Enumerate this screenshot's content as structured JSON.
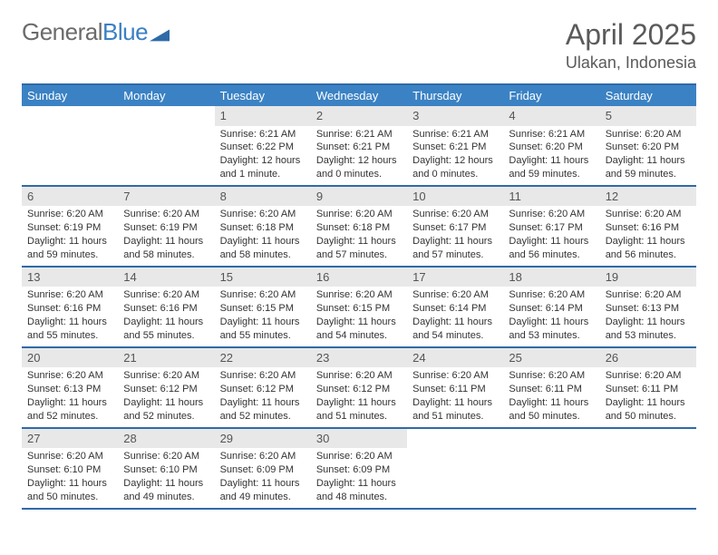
{
  "brand": {
    "part1": "General",
    "part2": "Blue"
  },
  "title": {
    "month": "April 2025",
    "location": "Ulakan, Indonesia"
  },
  "colors": {
    "header_bar": "#3b82c4",
    "week_border": "#2f6aa8",
    "daynum_bg": "#e8e8e8",
    "text": "#333333",
    "logo_gray": "#6b6b6b",
    "logo_blue": "#3b7fc4"
  },
  "days_of_week": [
    "Sunday",
    "Monday",
    "Tuesday",
    "Wednesday",
    "Thursday",
    "Friday",
    "Saturday"
  ],
  "weeks": [
    [
      {
        "n": "",
        "sr": "",
        "ss": "",
        "dl": ""
      },
      {
        "n": "",
        "sr": "",
        "ss": "",
        "dl": ""
      },
      {
        "n": "1",
        "sr": "Sunrise: 6:21 AM",
        "ss": "Sunset: 6:22 PM",
        "dl": "Daylight: 12 hours and 1 minute."
      },
      {
        "n": "2",
        "sr": "Sunrise: 6:21 AM",
        "ss": "Sunset: 6:21 PM",
        "dl": "Daylight: 12 hours and 0 minutes."
      },
      {
        "n": "3",
        "sr": "Sunrise: 6:21 AM",
        "ss": "Sunset: 6:21 PM",
        "dl": "Daylight: 12 hours and 0 minutes."
      },
      {
        "n": "4",
        "sr": "Sunrise: 6:21 AM",
        "ss": "Sunset: 6:20 PM",
        "dl": "Daylight: 11 hours and 59 minutes."
      },
      {
        "n": "5",
        "sr": "Sunrise: 6:20 AM",
        "ss": "Sunset: 6:20 PM",
        "dl": "Daylight: 11 hours and 59 minutes."
      }
    ],
    [
      {
        "n": "6",
        "sr": "Sunrise: 6:20 AM",
        "ss": "Sunset: 6:19 PM",
        "dl": "Daylight: 11 hours and 59 minutes."
      },
      {
        "n": "7",
        "sr": "Sunrise: 6:20 AM",
        "ss": "Sunset: 6:19 PM",
        "dl": "Daylight: 11 hours and 58 minutes."
      },
      {
        "n": "8",
        "sr": "Sunrise: 6:20 AM",
        "ss": "Sunset: 6:18 PM",
        "dl": "Daylight: 11 hours and 58 minutes."
      },
      {
        "n": "9",
        "sr": "Sunrise: 6:20 AM",
        "ss": "Sunset: 6:18 PM",
        "dl": "Daylight: 11 hours and 57 minutes."
      },
      {
        "n": "10",
        "sr": "Sunrise: 6:20 AM",
        "ss": "Sunset: 6:17 PM",
        "dl": "Daylight: 11 hours and 57 minutes."
      },
      {
        "n": "11",
        "sr": "Sunrise: 6:20 AM",
        "ss": "Sunset: 6:17 PM",
        "dl": "Daylight: 11 hours and 56 minutes."
      },
      {
        "n": "12",
        "sr": "Sunrise: 6:20 AM",
        "ss": "Sunset: 6:16 PM",
        "dl": "Daylight: 11 hours and 56 minutes."
      }
    ],
    [
      {
        "n": "13",
        "sr": "Sunrise: 6:20 AM",
        "ss": "Sunset: 6:16 PM",
        "dl": "Daylight: 11 hours and 55 minutes."
      },
      {
        "n": "14",
        "sr": "Sunrise: 6:20 AM",
        "ss": "Sunset: 6:16 PM",
        "dl": "Daylight: 11 hours and 55 minutes."
      },
      {
        "n": "15",
        "sr": "Sunrise: 6:20 AM",
        "ss": "Sunset: 6:15 PM",
        "dl": "Daylight: 11 hours and 55 minutes."
      },
      {
        "n": "16",
        "sr": "Sunrise: 6:20 AM",
        "ss": "Sunset: 6:15 PM",
        "dl": "Daylight: 11 hours and 54 minutes."
      },
      {
        "n": "17",
        "sr": "Sunrise: 6:20 AM",
        "ss": "Sunset: 6:14 PM",
        "dl": "Daylight: 11 hours and 54 minutes."
      },
      {
        "n": "18",
        "sr": "Sunrise: 6:20 AM",
        "ss": "Sunset: 6:14 PM",
        "dl": "Daylight: 11 hours and 53 minutes."
      },
      {
        "n": "19",
        "sr": "Sunrise: 6:20 AM",
        "ss": "Sunset: 6:13 PM",
        "dl": "Daylight: 11 hours and 53 minutes."
      }
    ],
    [
      {
        "n": "20",
        "sr": "Sunrise: 6:20 AM",
        "ss": "Sunset: 6:13 PM",
        "dl": "Daylight: 11 hours and 52 minutes."
      },
      {
        "n": "21",
        "sr": "Sunrise: 6:20 AM",
        "ss": "Sunset: 6:12 PM",
        "dl": "Daylight: 11 hours and 52 minutes."
      },
      {
        "n": "22",
        "sr": "Sunrise: 6:20 AM",
        "ss": "Sunset: 6:12 PM",
        "dl": "Daylight: 11 hours and 52 minutes."
      },
      {
        "n": "23",
        "sr": "Sunrise: 6:20 AM",
        "ss": "Sunset: 6:12 PM",
        "dl": "Daylight: 11 hours and 51 minutes."
      },
      {
        "n": "24",
        "sr": "Sunrise: 6:20 AM",
        "ss": "Sunset: 6:11 PM",
        "dl": "Daylight: 11 hours and 51 minutes."
      },
      {
        "n": "25",
        "sr": "Sunrise: 6:20 AM",
        "ss": "Sunset: 6:11 PM",
        "dl": "Daylight: 11 hours and 50 minutes."
      },
      {
        "n": "26",
        "sr": "Sunrise: 6:20 AM",
        "ss": "Sunset: 6:11 PM",
        "dl": "Daylight: 11 hours and 50 minutes."
      }
    ],
    [
      {
        "n": "27",
        "sr": "Sunrise: 6:20 AM",
        "ss": "Sunset: 6:10 PM",
        "dl": "Daylight: 11 hours and 50 minutes."
      },
      {
        "n": "28",
        "sr": "Sunrise: 6:20 AM",
        "ss": "Sunset: 6:10 PM",
        "dl": "Daylight: 11 hours and 49 minutes."
      },
      {
        "n": "29",
        "sr": "Sunrise: 6:20 AM",
        "ss": "Sunset: 6:09 PM",
        "dl": "Daylight: 11 hours and 49 minutes."
      },
      {
        "n": "30",
        "sr": "Sunrise: 6:20 AM",
        "ss": "Sunset: 6:09 PM",
        "dl": "Daylight: 11 hours and 48 minutes."
      },
      {
        "n": "",
        "sr": "",
        "ss": "",
        "dl": ""
      },
      {
        "n": "",
        "sr": "",
        "ss": "",
        "dl": ""
      },
      {
        "n": "",
        "sr": "",
        "ss": "",
        "dl": ""
      }
    ]
  ]
}
